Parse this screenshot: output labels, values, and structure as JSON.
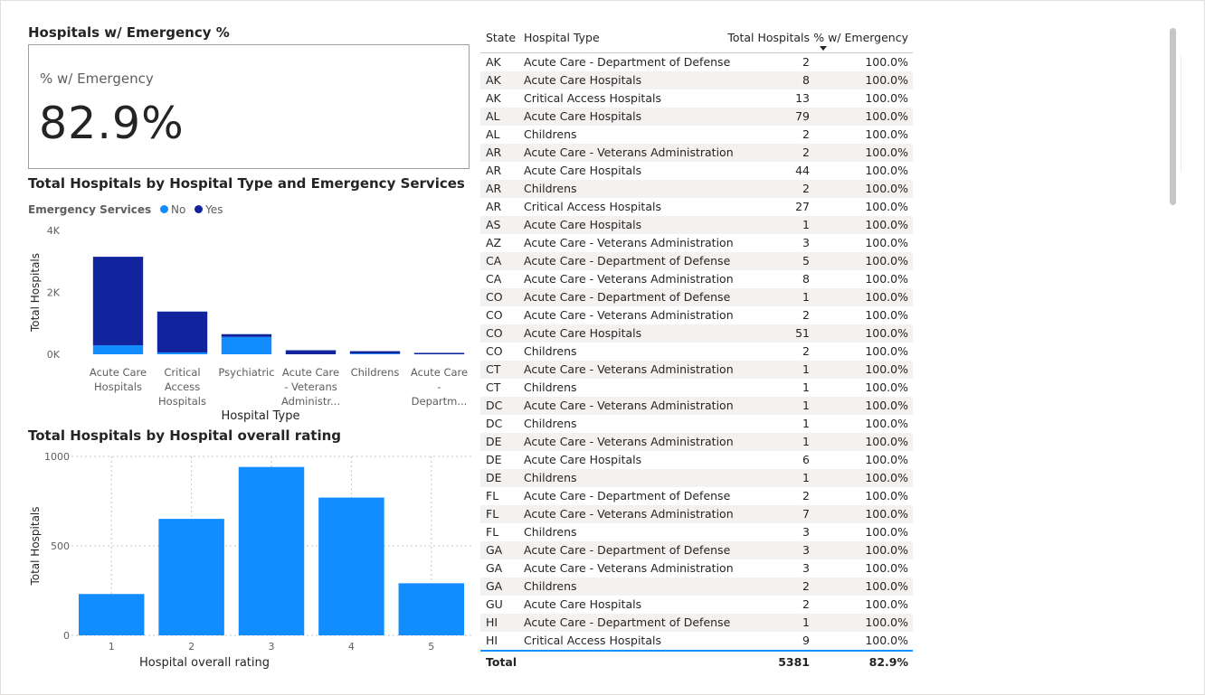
{
  "kpi": {
    "title": "Hospitals w/ Emergency %",
    "label": "% w/ Emergency",
    "value": "82.9%"
  },
  "chart_data": [
    {
      "type": "bar",
      "stacked": true,
      "title": "Total Hospitals by Hospital Type and Emergency Services",
      "legend_title": "Emergency Services",
      "legend_position": "top-left",
      "xlabel": "Hospital Type",
      "ylabel": "Total Hospitals",
      "ylim": [
        0,
        4000
      ],
      "yticks": [
        "0K",
        "2K",
        "4K"
      ],
      "grid": false,
      "categories": [
        [
          "Acute Care",
          "Hospitals"
        ],
        [
          "Critical",
          "Access",
          "Hospitals"
        ],
        [
          "Psychiatric"
        ],
        [
          "Acute Care",
          "- Veterans",
          "Administr..."
        ],
        [
          "Childrens"
        ],
        [
          "Acute Care",
          "-",
          "Departm..."
        ]
      ],
      "series": [
        {
          "name": "No",
          "color": "#118dff",
          "values": [
            290,
            60,
            560,
            0,
            25,
            0
          ]
        },
        {
          "name": "Yes",
          "color": "#12239e",
          "values": [
            2860,
            1320,
            90,
            130,
            75,
            45
          ]
        }
      ]
    },
    {
      "type": "bar",
      "title": "Total Hospitals by Hospital overall rating",
      "xlabel": "Hospital overall rating",
      "ylabel": "Total Hospitals",
      "ylim": [
        0,
        1000
      ],
      "yticks": [
        "0",
        "500",
        "1000"
      ],
      "grid": true,
      "categories": [
        "1",
        "2",
        "3",
        "4",
        "5"
      ],
      "series": [
        {
          "color": "#118dff",
          "values": [
            231,
            651,
            941,
            770,
            291
          ]
        }
      ]
    }
  ],
  "table": {
    "headers": [
      "State",
      "Hospital Type",
      "Total Hospitals",
      "% w/ Emergency"
    ],
    "rows": [
      [
        "AK",
        "Acute Care - Department of Defense",
        "2",
        "100.0%"
      ],
      [
        "AK",
        "Acute Care Hospitals",
        "8",
        "100.0%"
      ],
      [
        "AK",
        "Critical Access Hospitals",
        "13",
        "100.0%"
      ],
      [
        "AL",
        "Acute Care Hospitals",
        "79",
        "100.0%"
      ],
      [
        "AL",
        "Childrens",
        "2",
        "100.0%"
      ],
      [
        "AR",
        "Acute Care - Veterans Administration",
        "2",
        "100.0%"
      ],
      [
        "AR",
        "Acute Care Hospitals",
        "44",
        "100.0%"
      ],
      [
        "AR",
        "Childrens",
        "2",
        "100.0%"
      ],
      [
        "AR",
        "Critical Access Hospitals",
        "27",
        "100.0%"
      ],
      [
        "AS",
        "Acute Care Hospitals",
        "1",
        "100.0%"
      ],
      [
        "AZ",
        "Acute Care - Veterans Administration",
        "3",
        "100.0%"
      ],
      [
        "CA",
        "Acute Care - Department of Defense",
        "5",
        "100.0%"
      ],
      [
        "CA",
        "Acute Care - Veterans Administration",
        "8",
        "100.0%"
      ],
      [
        "CO",
        "Acute Care - Department of Defense",
        "1",
        "100.0%"
      ],
      [
        "CO",
        "Acute Care - Veterans Administration",
        "2",
        "100.0%"
      ],
      [
        "CO",
        "Acute Care Hospitals",
        "51",
        "100.0%"
      ],
      [
        "CO",
        "Childrens",
        "2",
        "100.0%"
      ],
      [
        "CT",
        "Acute Care - Veterans Administration",
        "1",
        "100.0%"
      ],
      [
        "CT",
        "Childrens",
        "1",
        "100.0%"
      ],
      [
        "DC",
        "Acute Care - Veterans Administration",
        "1",
        "100.0%"
      ],
      [
        "DC",
        "Childrens",
        "1",
        "100.0%"
      ],
      [
        "DE",
        "Acute Care - Veterans Administration",
        "1",
        "100.0%"
      ],
      [
        "DE",
        "Acute Care Hospitals",
        "6",
        "100.0%"
      ],
      [
        "DE",
        "Childrens",
        "1",
        "100.0%"
      ],
      [
        "FL",
        "Acute Care - Department of Defense",
        "2",
        "100.0%"
      ],
      [
        "FL",
        "Acute Care - Veterans Administration",
        "7",
        "100.0%"
      ],
      [
        "FL",
        "Childrens",
        "3",
        "100.0%"
      ],
      [
        "GA",
        "Acute Care - Department of Defense",
        "3",
        "100.0%"
      ],
      [
        "GA",
        "Acute Care - Veterans Administration",
        "3",
        "100.0%"
      ],
      [
        "GA",
        "Childrens",
        "2",
        "100.0%"
      ],
      [
        "GU",
        "Acute Care Hospitals",
        "2",
        "100.0%"
      ],
      [
        "HI",
        "Acute Care - Department of Defense",
        "1",
        "100.0%"
      ],
      [
        "HI",
        "Critical Access Hospitals",
        "9",
        "100.0%"
      ]
    ],
    "total": [
      "Total",
      "",
      "5381",
      "82.9%"
    ]
  }
}
